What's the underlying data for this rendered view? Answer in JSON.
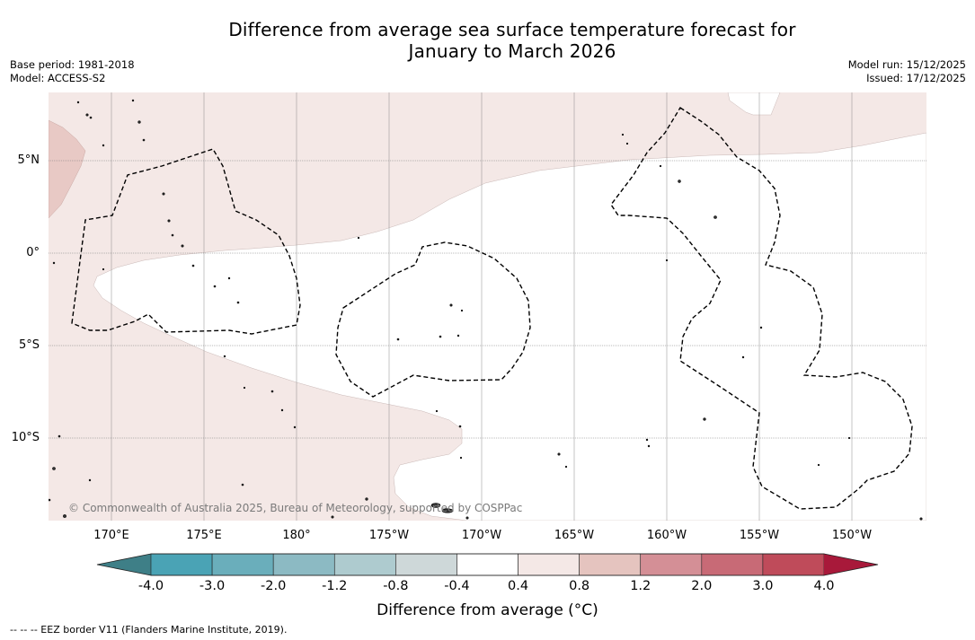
{
  "title_line1": "Difference from average sea surface temperature forecast for",
  "title_line2": "January to March 2026",
  "base_period": "Base period: 1981-2018",
  "model": "Model: ACCESS-S2",
  "model_run": "Model run: 15/12/2025",
  "issued": "Issued: 17/12/2025",
  "copyright": "© Commonwealth of Australia 2025, Bureau of Meteorology, supported by COSPPac",
  "lat_labels": [
    "5°N",
    "0°",
    "5°S",
    "10°S"
  ],
  "lon_labels": [
    "170°E",
    "175°E",
    "180°",
    "175°W",
    "170°W",
    "165°W",
    "160°W",
    "155°W",
    "150°W"
  ],
  "colorbar": {
    "ticks": [
      "-4.0",
      "-3.0",
      "-2.0",
      "-1.2",
      "-0.8",
      "-0.4",
      "0.4",
      "0.8",
      "1.2",
      "2.0",
      "3.0",
      "4.0"
    ],
    "colors": {
      "under": "#3e7f87",
      "bins": [
        "#4aa3b5",
        "#6aaebb",
        "#8cbac3",
        "#aecbcf",
        "#ced8d9",
        "#ffffff",
        "#f4e8e6",
        "#e5c4bf",
        "#d48f96",
        "#c86a76",
        "#bf4b5a"
      ],
      "over": "#a8193a"
    },
    "label": "Difference from average (°C)"
  },
  "map_colors": {
    "anomaly_0_4_to_0_8": "#f4e8e6",
    "anomaly_0_8_to_1_2": "#e8c9c5",
    "neutral": "#ffffff",
    "eez": "#000000"
  },
  "footnote": "-- -- -- EEZ border V11 (Flanders Marine Institute, 2019)."
}
